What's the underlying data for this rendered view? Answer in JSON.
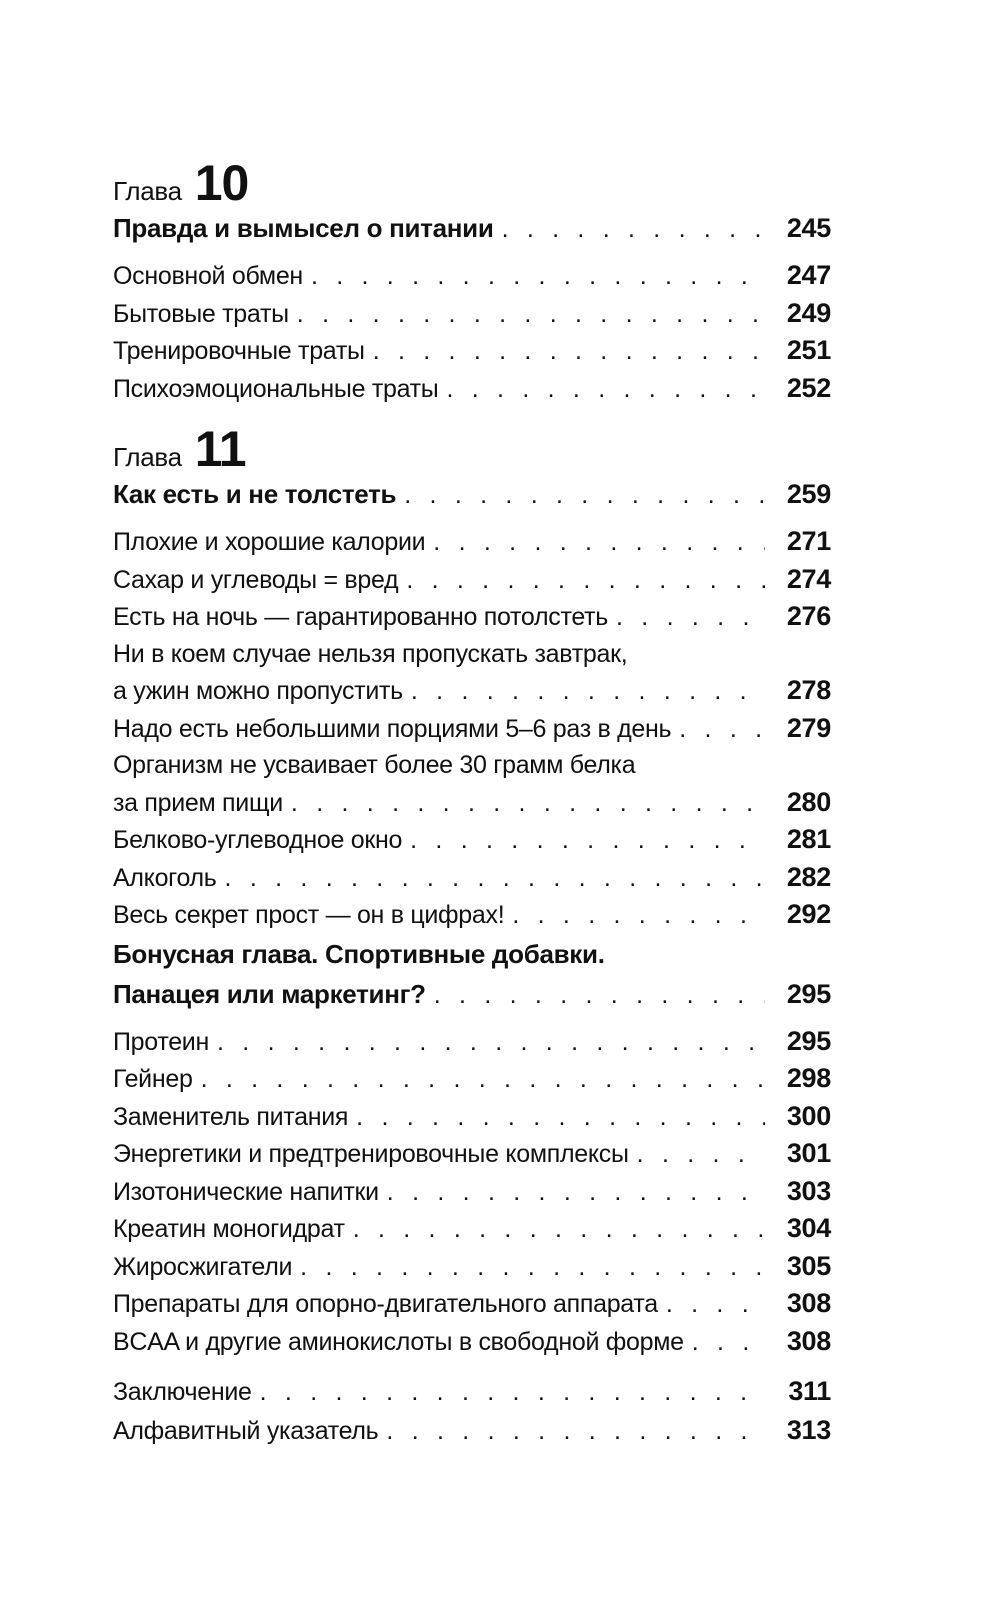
{
  "page": {
    "background": "#ffffff",
    "text_color": "#111111"
  },
  "toc": {
    "sections": [
      {
        "label": "Глава",
        "number": "10",
        "title": "Правда и вымысел о питании",
        "page": "245",
        "entries": [
          {
            "title": "Основной обмен",
            "page": "247"
          },
          {
            "title": "Бытовые траты",
            "page": "249"
          },
          {
            "title": "Тренировочные траты",
            "page": "251"
          },
          {
            "title": "Психоэмоциональные траты",
            "page": "252"
          }
        ]
      },
      {
        "label": "Глава",
        "number": "11",
        "title": "Как есть и не толстеть",
        "page": "259",
        "entries": [
          {
            "title": "Плохие и хорошие калории",
            "page": "271"
          },
          {
            "title": "Сахар и углеводы = вред",
            "page": "274"
          },
          {
            "title": "Есть на ночь — гарантированно потолстеть",
            "page": "276"
          },
          {
            "pre_line": "Ни в коем случае нельзя пропускать завтрак,",
            "title": "а ужин можно пропустить",
            "page": "278"
          },
          {
            "title": "Надо есть небольшими порциями 5–6 раз в день",
            "page": "279"
          },
          {
            "pre_line": "Организм не усваивает более 30 грамм белка",
            "title": "за прием пищи",
            "page": "280"
          },
          {
            "title": "Белково-углеводное окно",
            "page": "281"
          },
          {
            "title": "Алкоголь",
            "page": "282"
          },
          {
            "title": "Весь секрет прост — он в цифрах!",
            "page": "292"
          }
        ]
      },
      {
        "bonus_line1": "Бонусная глава. Спортивные добавки.",
        "bonus_line2": "Панацея или маркетинг?",
        "page": "295",
        "entries": [
          {
            "title": "Протеин",
            "page": "295"
          },
          {
            "title": "Гейнер",
            "page": "298"
          },
          {
            "title": "Заменитель питания",
            "page": "300"
          },
          {
            "title": "Энергетики и предтренировочные комплексы",
            "page": "301"
          },
          {
            "title": "Изотонические напитки",
            "page": "303"
          },
          {
            "title": "Креатин моногидрат",
            "page": "304"
          },
          {
            "title": "Жиросжигатели",
            "page": "305"
          },
          {
            "title": "Препараты для опорно-двигательного аппарата",
            "page": "308"
          },
          {
            "title": "BCAA и другие аминокислоты в свободной форме",
            "page": "308"
          }
        ]
      },
      {
        "entries": [
          {
            "title": "Заключение",
            "page": "311"
          },
          {
            "title": "Алфавитный указатель",
            "page": "313"
          }
        ]
      }
    ]
  }
}
